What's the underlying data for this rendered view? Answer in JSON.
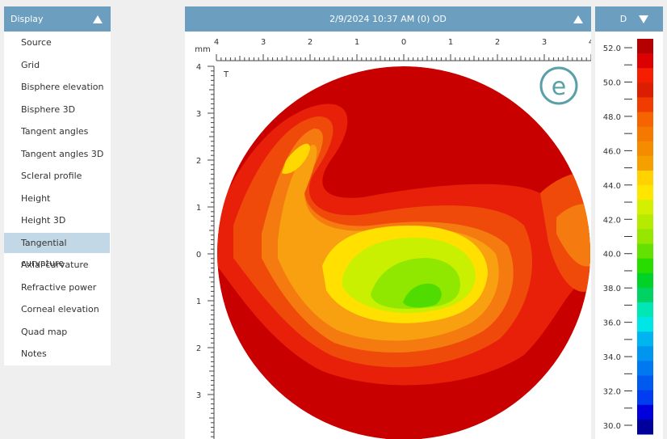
{
  "sidebar": {
    "title": "Display",
    "items": [
      "Source",
      "Grid",
      "Bisphere elevation",
      "Bisphere 3D",
      "Tangent angles",
      "Tangent angles 3D",
      "Scleral profile",
      "Height",
      "Height 3D",
      "Tangential curvature",
      "Axial curvature",
      "Refractive power",
      "Corneal elevation",
      "Quad map",
      "Notes"
    ],
    "selected": "Tangential curvature"
  },
  "map_panel": {
    "header": "2/9/2024 10:37 AM (0) OD",
    "unit": "mm",
    "top_labels": [
      "4",
      "3",
      "2",
      "1",
      "0",
      "1",
      "2",
      "3",
      "4"
    ],
    "left_labels": [
      "4",
      "3",
      "2",
      "1",
      "0",
      "1",
      "2",
      "3"
    ],
    "marker": "T"
  },
  "scale_panel": {
    "header": "D",
    "labels": [
      "52.0",
      "50.0",
      "48.0",
      "46.0",
      "44.0",
      "42.0",
      "40.0",
      "38.0",
      "36.0",
      "34.0",
      "32.0",
      "30.0"
    ]
  }
}
